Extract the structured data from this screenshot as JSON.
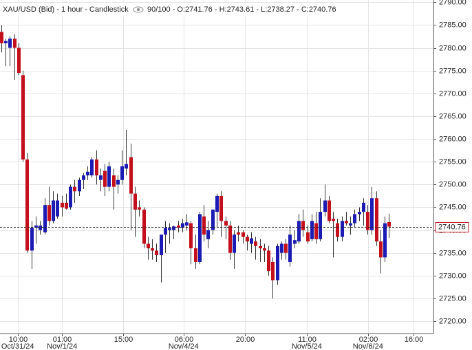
{
  "chart_data": {
    "type": "candlestick",
    "title": "XAU/USD (Bid) - 1 hour - Candlestick",
    "info": "90/100 - O:2741.76 - H:2743.61 - L:2738.27 - C:2740.76",
    "up_color": "#1c1cb4",
    "down_color": "#c4101c",
    "grid": true,
    "x": [
      0,
      1,
      2,
      3,
      4,
      5,
      6,
      7,
      8,
      9,
      10,
      11,
      12,
      13,
      14,
      15,
      16,
      17,
      18,
      19,
      20,
      21,
      22,
      23,
      24,
      25,
      26,
      27,
      28,
      29,
      30,
      31,
      32,
      33,
      34,
      35,
      36,
      37,
      38,
      39,
      40,
      41,
      42,
      43,
      44,
      45,
      46,
      47,
      48,
      49,
      50,
      51,
      52,
      53,
      54,
      55,
      56,
      57,
      58,
      59,
      60,
      61,
      62,
      63,
      64,
      65,
      66,
      67,
      68,
      69,
      70,
      71,
      72,
      73,
      74,
      75,
      76,
      77,
      78,
      79,
      80,
      81,
      82,
      83,
      84,
      85,
      86,
      87,
      88,
      89,
      90
    ],
    "open": [
      2783.5,
      2781,
      2780,
      2782,
      2780,
      2774,
      2755.5,
      2735.5,
      2740.5,
      2740,
      2739.5,
      2745.5,
      2742,
      2743,
      2746,
      2746,
      2745,
      2749.5,
      2748.5,
      2751,
      2752,
      2752,
      2755.5,
      2751,
      2753,
      2749.5,
      2752,
      2750,
      2751,
      2753.5,
      2756,
      2748,
      2745,
      2744.5,
      2737,
      2736,
      2735.5,
      2734.5,
      2739,
      2740,
      2740,
      2741,
      2740.5,
      2741,
      2741.5,
      2736,
      2733,
      2743,
      2738,
      2740,
      2744,
      2747.5,
      2742,
      2741,
      2735,
      2739.5,
      2739.5,
      2738.5,
      2737,
      2737.5,
      2736.5,
      2736,
      2735.5,
      2733,
      2729,
      2735,
      2737,
      2733,
      2737,
      2737.5,
      2742,
      2739.5,
      2738,
      2741.5,
      2738,
      2744,
      2746.5,
      2742.5,
      2741.5,
      2738.5,
      2742,
      2741,
      2741.5,
      2743.5,
      2744,
      2744,
      2740,
      2747,
      2737.5,
      2734,
      2741.76
    ],
    "high": [
      2785,
      2782,
      2782.5,
      2783,
      2781,
      2775,
      2757,
      2742,
      2743,
      2742,
      2747,
      2749.5,
      2748.5,
      2748,
      2747.5,
      2748,
      2750,
      2751,
      2751.5,
      2752.5,
      2754,
      2756,
      2757.5,
      2753.5,
      2754.5,
      2755,
      2753.5,
      2752,
      2757.5,
      2762,
      2759,
      2749.5,
      2746.5,
      2745,
      2738.5,
      2738,
      2737,
      2739,
      2742,
      2741.5,
      2741,
      2742,
      2742.5,
      2743.5,
      2742,
      2739,
      2744,
      2745.5,
      2742,
      2744.5,
      2748,
      2748.5,
      2743,
      2742,
      2740,
      2741,
      2740,
      2739,
      2739.5,
      2738.5,
      2738,
      2737,
      2736.5,
      2734,
      2737,
      2737.5,
      2738,
      2741,
      2740,
      2743.5,
      2744.5,
      2741,
      2743.5,
      2744,
      2747,
      2750,
      2747.5,
      2744,
      2742.5,
      2743,
      2744,
      2743,
      2744.5,
      2745,
      2747,
      2745.5,
      2749.5,
      2748.5,
      2740,
      2743,
      2743.61
    ],
    "low": [
      2779,
      2776,
      2776,
      2773,
      2774,
      2755,
      2735,
      2731.5,
      2737,
      2739,
      2739,
      2741,
      2741.5,
      2742.5,
      2743,
      2744.5,
      2744.5,
      2746,
      2747.5,
      2749,
      2751,
      2751.5,
      2750,
      2748.5,
      2747.5,
      2748.5,
      2744.5,
      2748,
      2750,
      2752,
      2740,
      2738.5,
      2743,
      2736,
      2733.5,
      2733.5,
      2733,
      2728.5,
      2735,
      2737,
      2738,
      2739.5,
      2739.5,
      2740,
      2732.5,
      2731.5,
      2732.5,
      2737.5,
      2736,
      2739,
      2740.5,
      2738.5,
      2738,
      2733.5,
      2731.5,
      2737.5,
      2737,
      2735.5,
      2735,
      2733.5,
      2733,
      2733,
      2730,
      2725,
      2728,
      2733.5,
      2733.5,
      2732,
      2736,
      2737,
      2738.5,
      2737,
      2737.5,
      2737,
      2737.5,
      2743,
      2741.5,
      2734,
      2737.5,
      2737.5,
      2741,
      2739,
      2740.5,
      2742,
      2741,
      2739,
      2739,
      2736.5,
      2730.5,
      2733,
      2738.27
    ],
    "close": [
      2781,
      2781.5,
      2782,
      2780,
      2774.5,
      2755.5,
      2735.5,
      2740.5,
      2741,
      2741,
      2745.5,
      2742,
      2746.5,
      2746.5,
      2745,
      2744.7,
      2749.5,
      2748.5,
      2751,
      2752,
      2752.8,
      2755.5,
      2752,
      2752,
      2749.5,
      2754,
      2749.5,
      2751,
      2754,
      2754.5,
      2748,
      2744.5,
      2744.5,
      2737,
      2736,
      2735.5,
      2734.5,
      2739,
      2740.5,
      2740.5,
      2740.8,
      2740.5,
      2741.5,
      2741.7,
      2736,
      2733,
      2743.5,
      2739,
      2740,
      2744.5,
      2747.5,
      2742,
      2741,
      2735,
      2739,
      2739,
      2738.5,
      2737.5,
      2738.2,
      2736.5,
      2736,
      2735.5,
      2731,
      2729,
      2736.5,
      2737,
      2735,
      2739,
      2737.8,
      2742,
      2740,
      2737.5,
      2742,
      2738,
      2744,
      2746.5,
      2742,
      2742,
      2738.5,
      2742,
      2741.5,
      2741.5,
      2743.5,
      2744,
      2746,
      2740,
      2747,
      2737.5,
      2734,
      2741.5,
      2740.76
    ],
    "last_price": 2740.76,
    "xlim": [
      -0.3,
      100.3
    ],
    "ylim": [
      2717.3,
      2790.5
    ],
    "yticks": [
      {
        "value": 2720,
        "label": "2720.00"
      },
      {
        "value": 2725,
        "label": "2725.00"
      },
      {
        "value": 2730,
        "label": "2730.00"
      },
      {
        "value": 2735,
        "label": "2735.00"
      },
      {
        "value": 2740,
        "label": "2740.00"
      },
      {
        "value": 2745,
        "label": "2745.00"
      },
      {
        "value": 2750,
        "label": "2750.00"
      },
      {
        "value": 2755,
        "label": "2755.00"
      },
      {
        "value": 2760,
        "label": "2760.00"
      },
      {
        "value": 2765,
        "label": "2765.00"
      },
      {
        "value": 2770,
        "label": "2770.00"
      },
      {
        "value": 2775,
        "label": "2775.00"
      },
      {
        "value": 2780,
        "label": "2780.00"
      },
      {
        "value": 2785,
        "label": "2785.00"
      },
      {
        "value": 2790,
        "label": "2790.00"
      }
    ],
    "xticks": [
      {
        "value": 3.8,
        "label": "10:00"
      },
      {
        "value": 14.1,
        "label": "01:00"
      },
      {
        "value": 28.3,
        "label": "15:00"
      },
      {
        "value": 42.3,
        "label": "06:00"
      },
      {
        "value": 56.5,
        "label": "20:00"
      },
      {
        "value": 70.9,
        "label": "11:00"
      },
      {
        "value": 85.1,
        "label": "02:00"
      },
      {
        "value": 95.7,
        "label": "16:00"
      }
    ],
    "xdates": [
      {
        "value": 3.8,
        "label": "Oct/31/24"
      },
      {
        "value": 14.1,
        "label": "Nov/1/24"
      },
      {
        "value": 42.3,
        "label": "Nov/4/24"
      },
      {
        "value": 70.9,
        "label": "Nov/5/24"
      },
      {
        "value": 85.1,
        "label": "Nov/6/24"
      }
    ]
  }
}
